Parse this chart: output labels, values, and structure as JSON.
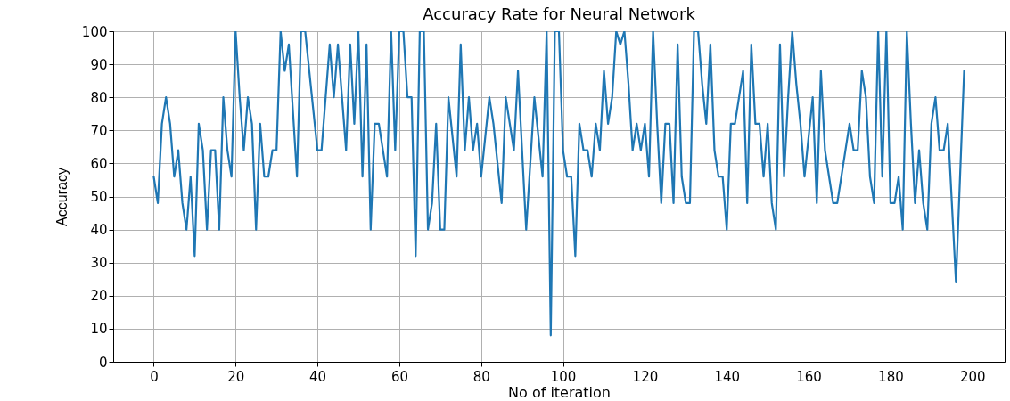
{
  "chart_data": {
    "type": "line",
    "title": "Accuracy Rate for Neural Network",
    "xlabel": "No of iteration",
    "ylabel": "Accuracy",
    "x": [
      0,
      1,
      2,
      3,
      4,
      5,
      6,
      7,
      8,
      9,
      10,
      11,
      12,
      13,
      14,
      15,
      16,
      17,
      18,
      19,
      20,
      21,
      22,
      23,
      24,
      25,
      26,
      27,
      28,
      29,
      30,
      31,
      32,
      33,
      34,
      35,
      36,
      37,
      38,
      39,
      40,
      41,
      42,
      43,
      44,
      45,
      46,
      47,
      48,
      49,
      50,
      51,
      52,
      53,
      54,
      55,
      56,
      57,
      58,
      59,
      60,
      61,
      62,
      63,
      64,
      65,
      66,
      67,
      68,
      69,
      70,
      71,
      72,
      73,
      74,
      75,
      76,
      77,
      78,
      79,
      80,
      81,
      82,
      83,
      84,
      85,
      86,
      87,
      88,
      89,
      90,
      91,
      92,
      93,
      94,
      95,
      96,
      97,
      98,
      99,
      100,
      101,
      102,
      103,
      104,
      105,
      106,
      107,
      108,
      109,
      110,
      111,
      112,
      113,
      114,
      115,
      116,
      117,
      118,
      119,
      120,
      121,
      122,
      123,
      124,
      125,
      126,
      127,
      128,
      129,
      130,
      131,
      132,
      133,
      134,
      135,
      136,
      137,
      138,
      139,
      140,
      141,
      142,
      143,
      144,
      145,
      146,
      147,
      148,
      149,
      150,
      151,
      152,
      153,
      154,
      155,
      156,
      157,
      158,
      159,
      160,
      161,
      162,
      163,
      164,
      165,
      166,
      167,
      168,
      169,
      170,
      171,
      172,
      173,
      174,
      175,
      176,
      177,
      178,
      179,
      180,
      181,
      182,
      183,
      184,
      185,
      186,
      187,
      188,
      189,
      190,
      191,
      192,
      193,
      194,
      195,
      196,
      197,
      198
    ],
    "series": [
      {
        "color": "#1f77b4",
        "values": [
          56,
          48,
          72,
          80,
          72,
          56,
          64,
          48,
          40,
          56,
          32,
          72,
          64,
          40,
          64,
          64,
          40,
          80,
          64,
          56,
          100,
          80,
          64,
          80,
          72,
          40,
          72,
          56,
          56,
          64,
          64,
          100,
          88,
          96,
          76,
          56,
          100,
          100,
          88,
          76,
          64,
          64,
          80,
          96,
          80,
          96,
          80,
          64,
          96,
          72,
          100,
          56,
          96,
          40,
          72,
          72,
          64,
          56,
          100,
          64,
          100,
          100,
          80,
          80,
          32,
          100,
          100,
          40,
          48,
          72,
          40,
          40,
          80,
          68,
          56,
          96,
          64,
          80,
          64,
          72,
          56,
          68,
          80,
          72,
          60,
          48,
          80,
          72,
          64,
          88,
          64,
          40,
          60,
          80,
          68,
          56,
          100,
          8,
          100,
          100,
          64,
          56,
          56,
          32,
          72,
          64,
          64,
          56,
          72,
          64,
          88,
          72,
          80,
          100,
          96,
          100,
          84,
          64,
          72,
          64,
          72,
          56,
          100,
          72,
          48,
          72,
          72,
          48,
          96,
          56,
          48,
          48,
          100,
          100,
          84,
          72,
          96,
          64,
          56,
          56,
          40,
          72,
          72,
          80,
          88,
          48,
          96,
          72,
          72,
          56,
          72,
          48,
          40,
          96,
          56,
          80,
          100,
          84,
          72,
          56,
          68,
          80,
          48,
          88,
          64,
          56,
          48,
          48,
          56,
          64,
          72,
          64,
          64,
          88,
          80,
          56,
          48,
          100,
          56,
          100,
          48,
          48,
          56,
          40,
          100,
          72,
          48,
          64,
          48,
          40,
          72,
          80,
          64,
          64,
          72,
          48,
          24,
          56,
          88
        ]
      }
    ],
    "xlim": [
      -9.9,
      207.9
    ],
    "ylim": [
      0,
      100
    ],
    "xticks": [
      0,
      20,
      40,
      60,
      80,
      100,
      120,
      140,
      160,
      180,
      200
    ],
    "yticks": [
      0,
      10,
      20,
      30,
      40,
      50,
      60,
      70,
      80,
      90,
      100
    ],
    "grid": true,
    "marker": "none",
    "line_style": "solid"
  }
}
